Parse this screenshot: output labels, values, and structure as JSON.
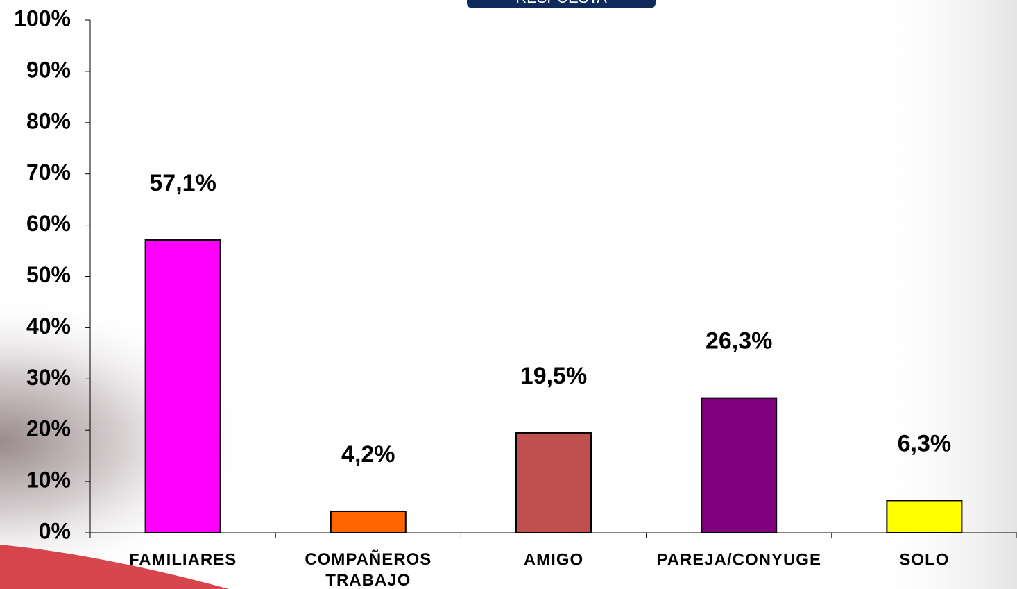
{
  "chart_data": {
    "type": "bar",
    "title": "RESPUESTA",
    "categories": [
      "FAMILIARES",
      "COMPAÑEROS TRABAJO",
      "AMIGO",
      "PAREJA/CONYUGE",
      "SOLO"
    ],
    "values": [
      57.1,
      4.2,
      19.5,
      26.3,
      6.3
    ],
    "value_labels": [
      "57,1%",
      "4,2%",
      "19,5%",
      "26,3%",
      "6,3%"
    ],
    "colors": [
      "#ff00ff",
      "#ff6600",
      "#c0504d",
      "#800080",
      "#ffff00"
    ],
    "ylim": [
      0,
      100
    ],
    "yticks": [
      {
        "value": 0,
        "label": "0%"
      },
      {
        "value": 10,
        "label": "10%"
      },
      {
        "value": 20,
        "label": "20%"
      },
      {
        "value": 30,
        "label": "30%"
      },
      {
        "value": 40,
        "label": "40%"
      },
      {
        "value": 50,
        "label": "50%"
      },
      {
        "value": 60,
        "label": "60%"
      },
      {
        "value": 70,
        "label": "70%"
      },
      {
        "value": 80,
        "label": "80%"
      },
      {
        "value": 90,
        "label": "90%"
      },
      {
        "value": 100,
        "label": "100%"
      }
    ],
    "grid": false
  }
}
